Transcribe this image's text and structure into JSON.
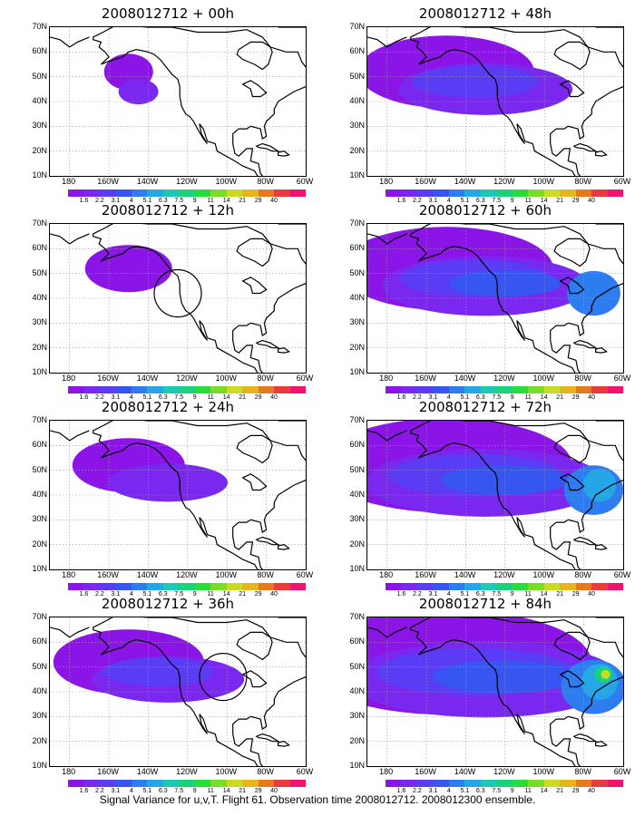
{
  "caption": "Signal Variance for u,v,T. Flight 61. Observation time 2008012712. 2008012300 ensemble.",
  "lat_labels": [
    "70N",
    "60N",
    "50N",
    "40N",
    "30N",
    "20N",
    "10N"
  ],
  "lon_labels": [
    "180",
    "160W",
    "140W",
    "120W",
    "100W",
    "80W",
    "60W"
  ],
  "colorbar": {
    "labels": [
      "1.6",
      "2.2",
      "3.1",
      "4",
      "5.1",
      "6.3",
      "7.5",
      "9",
      "11",
      "14",
      "21",
      "29",
      "40"
    ],
    "colors": [
      "#8b14e6",
      "#7a28f0",
      "#5a3cf5",
      "#3755f0",
      "#2d7cf0",
      "#25a6e6",
      "#1ec8b4",
      "#19d27a",
      "#28dc3c",
      "#78dc28",
      "#c8dc23",
      "#e6b41e",
      "#e6781e",
      "#e63c3c",
      "#f0146e"
    ]
  },
  "panels": [
    {
      "title": "2008012712 + 00h",
      "level": 0.05,
      "circle": null
    },
    {
      "title": "2008012712 + 12h",
      "level": 0.2,
      "circle": {
        "lon": -125,
        "lat": 42
      }
    },
    {
      "title": "2008012712 + 24h",
      "level": 0.3,
      "circle": null
    },
    {
      "title": "2008012712 + 36h",
      "level": 0.45,
      "circle": {
        "lon": -102,
        "lat": 46
      }
    },
    {
      "title": "2008012712 + 48h",
      "level": 0.55,
      "circle": null
    },
    {
      "title": "2008012712 + 60h",
      "level": 0.7,
      "circle": null
    },
    {
      "title": "2008012712 + 72h",
      "level": 0.85,
      "circle": null
    },
    {
      "title": "2008012712 + 84h",
      "level": 1.0,
      "circle": null
    }
  ],
  "map_extent": {
    "lon": [
      -190,
      -60
    ],
    "lat": [
      10,
      70
    ]
  }
}
